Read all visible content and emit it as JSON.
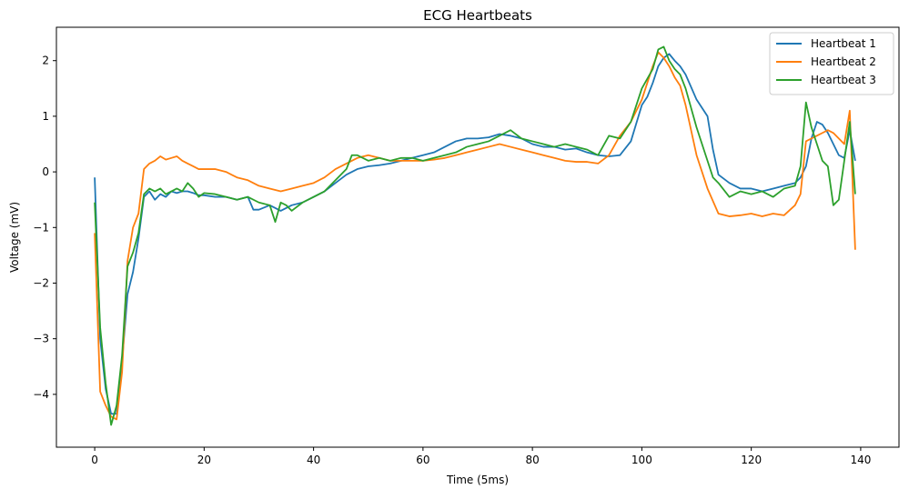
{
  "chart_data": {
    "type": "line",
    "title": "ECG Heartbeats",
    "xlabel": "Time (5ms)",
    "ylabel": "Voltage (mV)",
    "xlim": [
      -7,
      147
    ],
    "ylim": [
      -4.95,
      2.6
    ],
    "xticks": [
      0,
      20,
      40,
      60,
      80,
      100,
      120,
      140
    ],
    "yticks": [
      -4,
      -3,
      -2,
      -1,
      0,
      1,
      2
    ],
    "grid": false,
    "legend_position": "top-right",
    "series": [
      {
        "name": "Heartbeat 1",
        "color": "#1f77b4",
        "x": [
          0,
          1,
          2,
          3,
          4,
          5,
          6,
          7,
          8,
          9,
          10,
          11,
          12,
          13,
          14,
          15,
          16,
          17,
          18,
          19,
          20,
          22,
          24,
          26,
          28,
          29,
          30,
          32,
          34,
          36,
          38,
          40,
          42,
          44,
          46,
          48,
          50,
          52,
          54,
          56,
          58,
          60,
          62,
          64,
          66,
          68,
          70,
          72,
          74,
          76,
          78,
          80,
          82,
          84,
          86,
          88,
          90,
          92,
          94,
          96,
          98,
          100,
          101,
          102,
          103,
          104,
          105,
          106,
          107,
          108,
          110,
          112,
          113,
          114,
          116,
          118,
          120,
          122,
          124,
          126,
          128,
          129,
          130,
          131,
          132,
          133,
          134,
          135,
          136,
          137,
          138,
          139
        ],
        "y": [
          -0.1,
          -3.0,
          -3.9,
          -4.35,
          -4.35,
          -3.4,
          -2.2,
          -1.8,
          -1.2,
          -0.45,
          -0.35,
          -0.5,
          -0.4,
          -0.45,
          -0.35,
          -0.38,
          -0.35,
          -0.35,
          -0.38,
          -0.42,
          -0.42,
          -0.45,
          -0.45,
          -0.5,
          -0.45,
          -0.68,
          -0.68,
          -0.6,
          -0.7,
          -0.6,
          -0.55,
          -0.45,
          -0.35,
          -0.2,
          -0.05,
          0.05,
          0.1,
          0.12,
          0.15,
          0.2,
          0.25,
          0.3,
          0.35,
          0.45,
          0.55,
          0.6,
          0.6,
          0.62,
          0.68,
          0.65,
          0.6,
          0.5,
          0.45,
          0.45,
          0.4,
          0.42,
          0.35,
          0.3,
          0.28,
          0.3,
          0.55,
          1.2,
          1.35,
          1.6,
          1.9,
          2.05,
          2.12,
          2.0,
          1.9,
          1.75,
          1.3,
          1.0,
          0.4,
          -0.05,
          -0.2,
          -0.3,
          -0.3,
          -0.35,
          -0.3,
          -0.25,
          -0.2,
          -0.1,
          0.1,
          0.6,
          0.9,
          0.85,
          0.7,
          0.5,
          0.3,
          0.25,
          0.75,
          0.2
        ]
      },
      {
        "name": "Heartbeat 2",
        "color": "#ff7f0e",
        "x": [
          0,
          1,
          2,
          3,
          4,
          5,
          6,
          7,
          8,
          9,
          10,
          11,
          12,
          13,
          14,
          15,
          16,
          17,
          18,
          19,
          20,
          22,
          24,
          26,
          28,
          30,
          32,
          34,
          36,
          38,
          40,
          42,
          44,
          46,
          48,
          50,
          52,
          54,
          56,
          58,
          60,
          62,
          64,
          66,
          68,
          70,
          72,
          74,
          76,
          78,
          80,
          82,
          84,
          86,
          88,
          90,
          92,
          94,
          96,
          98,
          100,
          102,
          103,
          104,
          105,
          106,
          107,
          108,
          110,
          112,
          114,
          116,
          118,
          120,
          122,
          124,
          126,
          128,
          129,
          130,
          131,
          132,
          133,
          134,
          135,
          136,
          137,
          138,
          139
        ],
        "y": [
          -1.1,
          -3.95,
          -4.2,
          -4.4,
          -4.45,
          -3.6,
          -1.6,
          -1.0,
          -0.75,
          0.05,
          0.15,
          0.2,
          0.28,
          0.22,
          0.25,
          0.28,
          0.2,
          0.15,
          0.1,
          0.05,
          0.05,
          0.05,
          0.0,
          -0.1,
          -0.15,
          -0.25,
          -0.3,
          -0.35,
          -0.3,
          -0.25,
          -0.2,
          -0.1,
          0.05,
          0.15,
          0.25,
          0.3,
          0.25,
          0.2,
          0.2,
          0.2,
          0.2,
          0.22,
          0.25,
          0.3,
          0.35,
          0.4,
          0.45,
          0.5,
          0.45,
          0.4,
          0.35,
          0.3,
          0.25,
          0.2,
          0.18,
          0.18,
          0.15,
          0.3,
          0.65,
          0.9,
          1.3,
          1.9,
          2.15,
          2.05,
          1.9,
          1.7,
          1.55,
          1.2,
          0.3,
          -0.3,
          -0.75,
          -0.8,
          -0.78,
          -0.75,
          -0.8,
          -0.75,
          -0.78,
          -0.6,
          -0.4,
          0.55,
          0.6,
          0.65,
          0.7,
          0.75,
          0.7,
          0.6,
          0.5,
          1.1,
          -1.4
        ]
      },
      {
        "name": "Heartbeat 3",
        "color": "#2ca02c",
        "x": [
          0,
          1,
          2,
          3,
          4,
          5,
          6,
          7,
          8,
          9,
          10,
          11,
          12,
          13,
          14,
          15,
          16,
          17,
          18,
          19,
          20,
          22,
          24,
          26,
          28,
          30,
          32,
          33,
          34,
          35,
          36,
          38,
          40,
          42,
          44,
          46,
          47,
          48,
          50,
          52,
          54,
          56,
          58,
          60,
          62,
          64,
          66,
          68,
          70,
          72,
          74,
          76,
          78,
          80,
          82,
          84,
          86,
          88,
          90,
          92,
          94,
          96,
          98,
          100,
          102,
          103,
          104,
          105,
          106,
          107,
          108,
          110,
          112,
          113,
          114,
          116,
          118,
          120,
          122,
          124,
          126,
          128,
          129,
          130,
          131,
          132,
          133,
          134,
          135,
          136,
          137,
          138,
          139
        ],
        "y": [
          -0.55,
          -2.8,
          -3.8,
          -4.55,
          -4.2,
          -3.3,
          -1.7,
          -1.45,
          -1.1,
          -0.4,
          -0.3,
          -0.35,
          -0.3,
          -0.4,
          -0.35,
          -0.3,
          -0.35,
          -0.2,
          -0.3,
          -0.45,
          -0.38,
          -0.4,
          -0.45,
          -0.5,
          -0.45,
          -0.55,
          -0.6,
          -0.9,
          -0.55,
          -0.6,
          -0.7,
          -0.55,
          -0.45,
          -0.35,
          -0.15,
          0.05,
          0.3,
          0.3,
          0.2,
          0.25,
          0.2,
          0.25,
          0.25,
          0.2,
          0.25,
          0.3,
          0.35,
          0.45,
          0.5,
          0.55,
          0.65,
          0.75,
          0.6,
          0.55,
          0.5,
          0.45,
          0.5,
          0.45,
          0.4,
          0.3,
          0.65,
          0.6,
          0.9,
          1.5,
          1.85,
          2.2,
          2.25,
          2.0,
          1.85,
          1.75,
          1.5,
          0.8,
          0.2,
          -0.1,
          -0.2,
          -0.45,
          -0.35,
          -0.4,
          -0.35,
          -0.45,
          -0.3,
          -0.25,
          0.1,
          1.25,
          0.8,
          0.5,
          0.2,
          0.1,
          -0.6,
          -0.5,
          0.2,
          0.9,
          -0.4
        ]
      }
    ]
  }
}
